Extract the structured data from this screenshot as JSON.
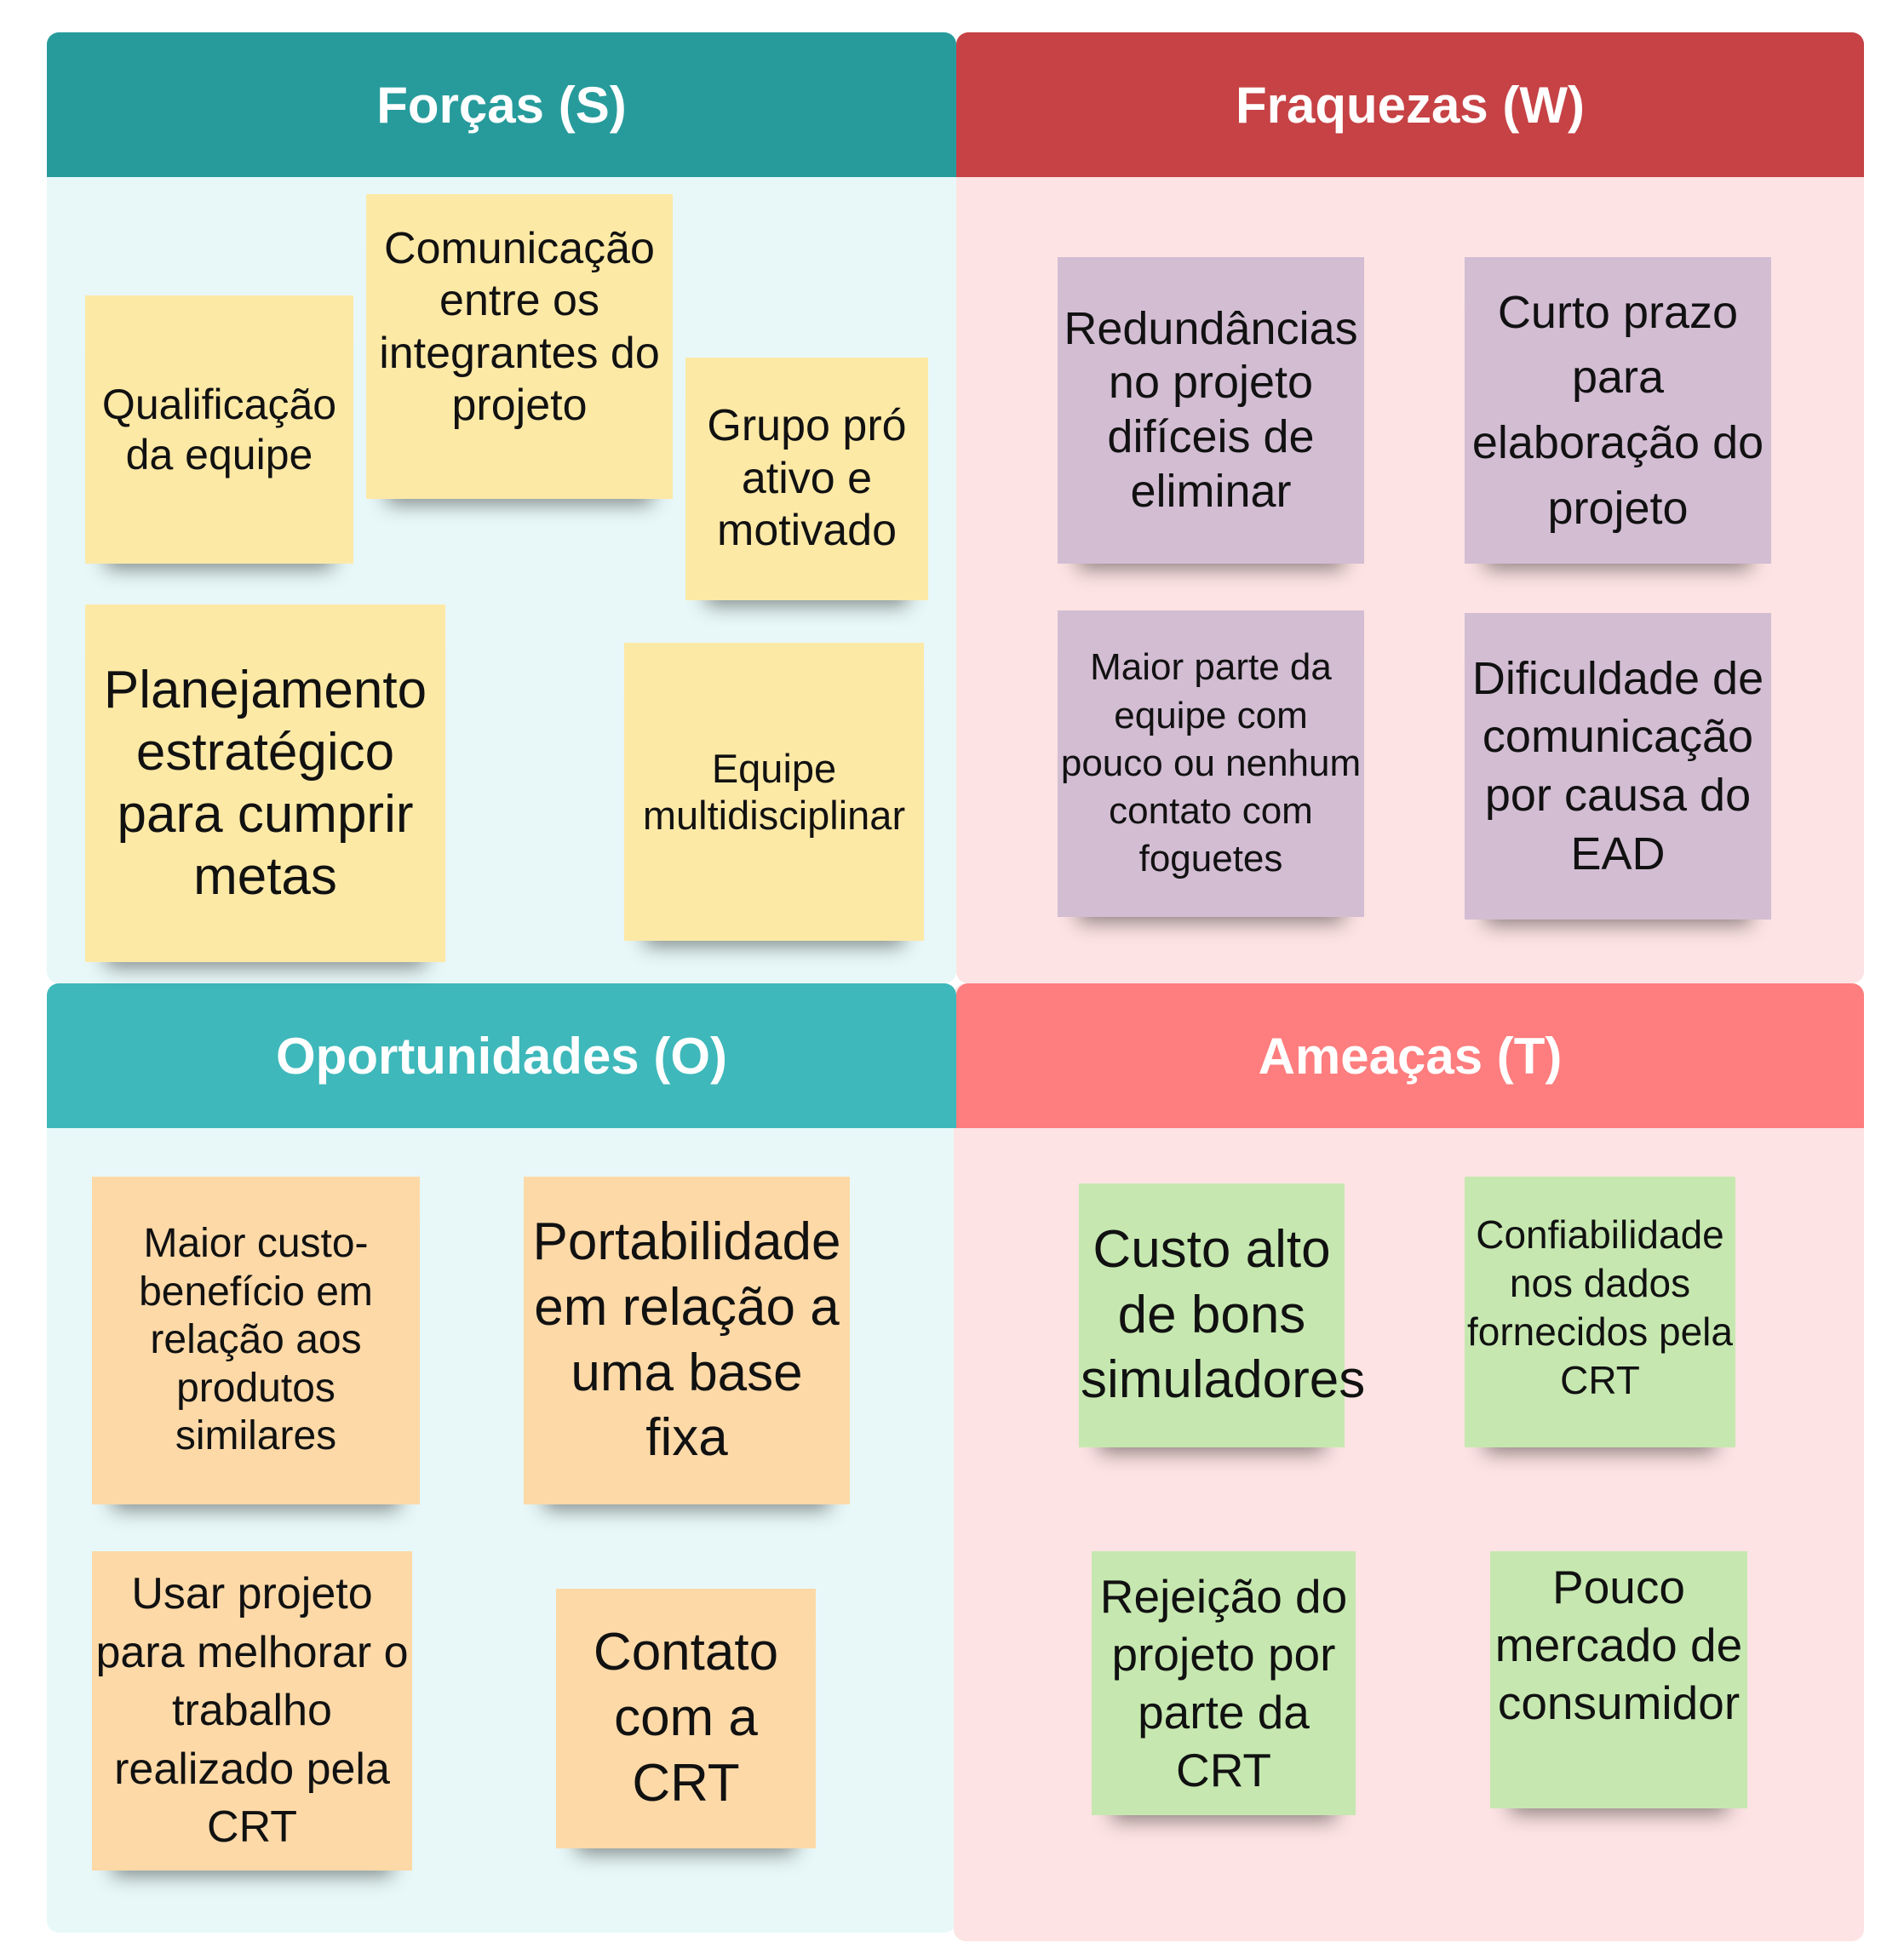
{
  "colors": {
    "strengths_header": "#279b9c",
    "strengths_bg": "#e8f8f8",
    "weaknesses_header": "#c64245",
    "weaknesses_bg": "#fde3e3",
    "opportunities_header": "#3eb8ba",
    "opportunities_bg": "#e8f8f8",
    "threats_header": "#fe7d7e",
    "threats_bg": "#fde3e3",
    "note_yellow": "#fde9a6",
    "note_purple": "#d2bdd3",
    "note_orange": "#fdd9a7",
    "note_green": "#c6e8b0"
  },
  "quadrants": {
    "strengths": {
      "title": "Forças (S)",
      "notes": [
        "Qualificação da equipe",
        "Comunicação entre os integrantes do projeto",
        "Grupo pró ativo e motivado",
        "Planejamento estratégico para cumprir metas",
        "Equipe multidisciplinar"
      ]
    },
    "weaknesses": {
      "title": "Fraquezas (W)",
      "notes": [
        "Redundâncias no projeto difíceis de eliminar",
        "Curto prazo para elaboração do projeto",
        "Maior parte da equipe com pouco ou nenhum contato com foguetes",
        "Dificuldade de comunicação por causa do EAD"
      ]
    },
    "opportunities": {
      "title": "Oportunidades (O)",
      "notes": [
        "Maior custo-benefício em relação aos produtos similares",
        "Portabilidade em relação a uma base fixa",
        "Usar projeto para melhorar o trabalho realizado pela CRT",
        "Contato com a CRT"
      ]
    },
    "threats": {
      "title": "Ameaças (T)",
      "notes": [
        "Custo alto de bons simuladores",
        "Confiabilidade nos dados fornecidos pela CRT",
        "Rejeição do projeto por parte da CRT",
        "Pouco mercado de consumidor"
      ]
    }
  }
}
